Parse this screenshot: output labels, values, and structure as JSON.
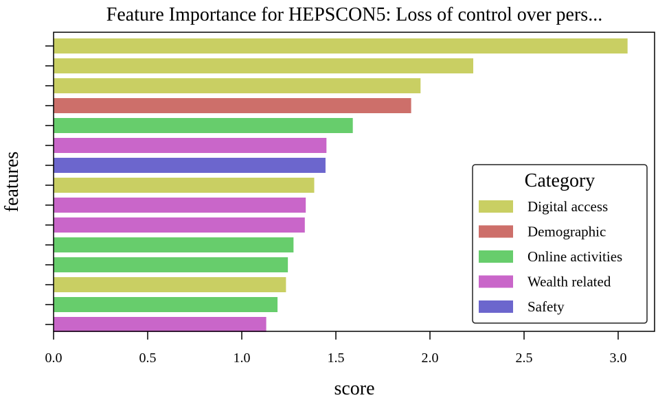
{
  "chart_data": {
    "type": "bar",
    "orientation": "horizontal",
    "title": "Feature Importance for HEPSCON5: Loss of control over pers...",
    "xlabel": "score",
    "ylabel": "features",
    "xlim": [
      0,
      3.2
    ],
    "xticks": [
      "0.0",
      "0.5",
      "1.0",
      "1.5",
      "2.0",
      "2.5",
      "3.0"
    ],
    "grid": false,
    "legend": {
      "title": "Category",
      "placement": "center-right",
      "entries": [
        {
          "label": "Digital access",
          "color": "#c9cf63"
        },
        {
          "label": "Demographic",
          "color": "#cd6f6a"
        },
        {
          "label": "Online activities",
          "color": "#67cd6c"
        },
        {
          "label": "Wealth related",
          "color": "#c966c9"
        },
        {
          "label": "Safety",
          "color": "#6c66cd"
        }
      ]
    },
    "bars": [
      {
        "value": 3.05,
        "category": "Digital access"
      },
      {
        "value": 2.23,
        "category": "Digital access"
      },
      {
        "value": 1.95,
        "category": "Digital access"
      },
      {
        "value": 1.9,
        "category": "Demographic"
      },
      {
        "value": 1.59,
        "category": "Online activities"
      },
      {
        "value": 1.45,
        "category": "Wealth related"
      },
      {
        "value": 1.445,
        "category": "Safety"
      },
      {
        "value": 1.385,
        "category": "Digital access"
      },
      {
        "value": 1.34,
        "category": "Wealth related"
      },
      {
        "value": 1.335,
        "category": "Wealth related"
      },
      {
        "value": 1.275,
        "category": "Online activities"
      },
      {
        "value": 1.245,
        "category": "Online activities"
      },
      {
        "value": 1.235,
        "category": "Digital access"
      },
      {
        "value": 1.19,
        "category": "Online activities"
      },
      {
        "value": 1.13,
        "category": "Wealth related"
      }
    ]
  }
}
